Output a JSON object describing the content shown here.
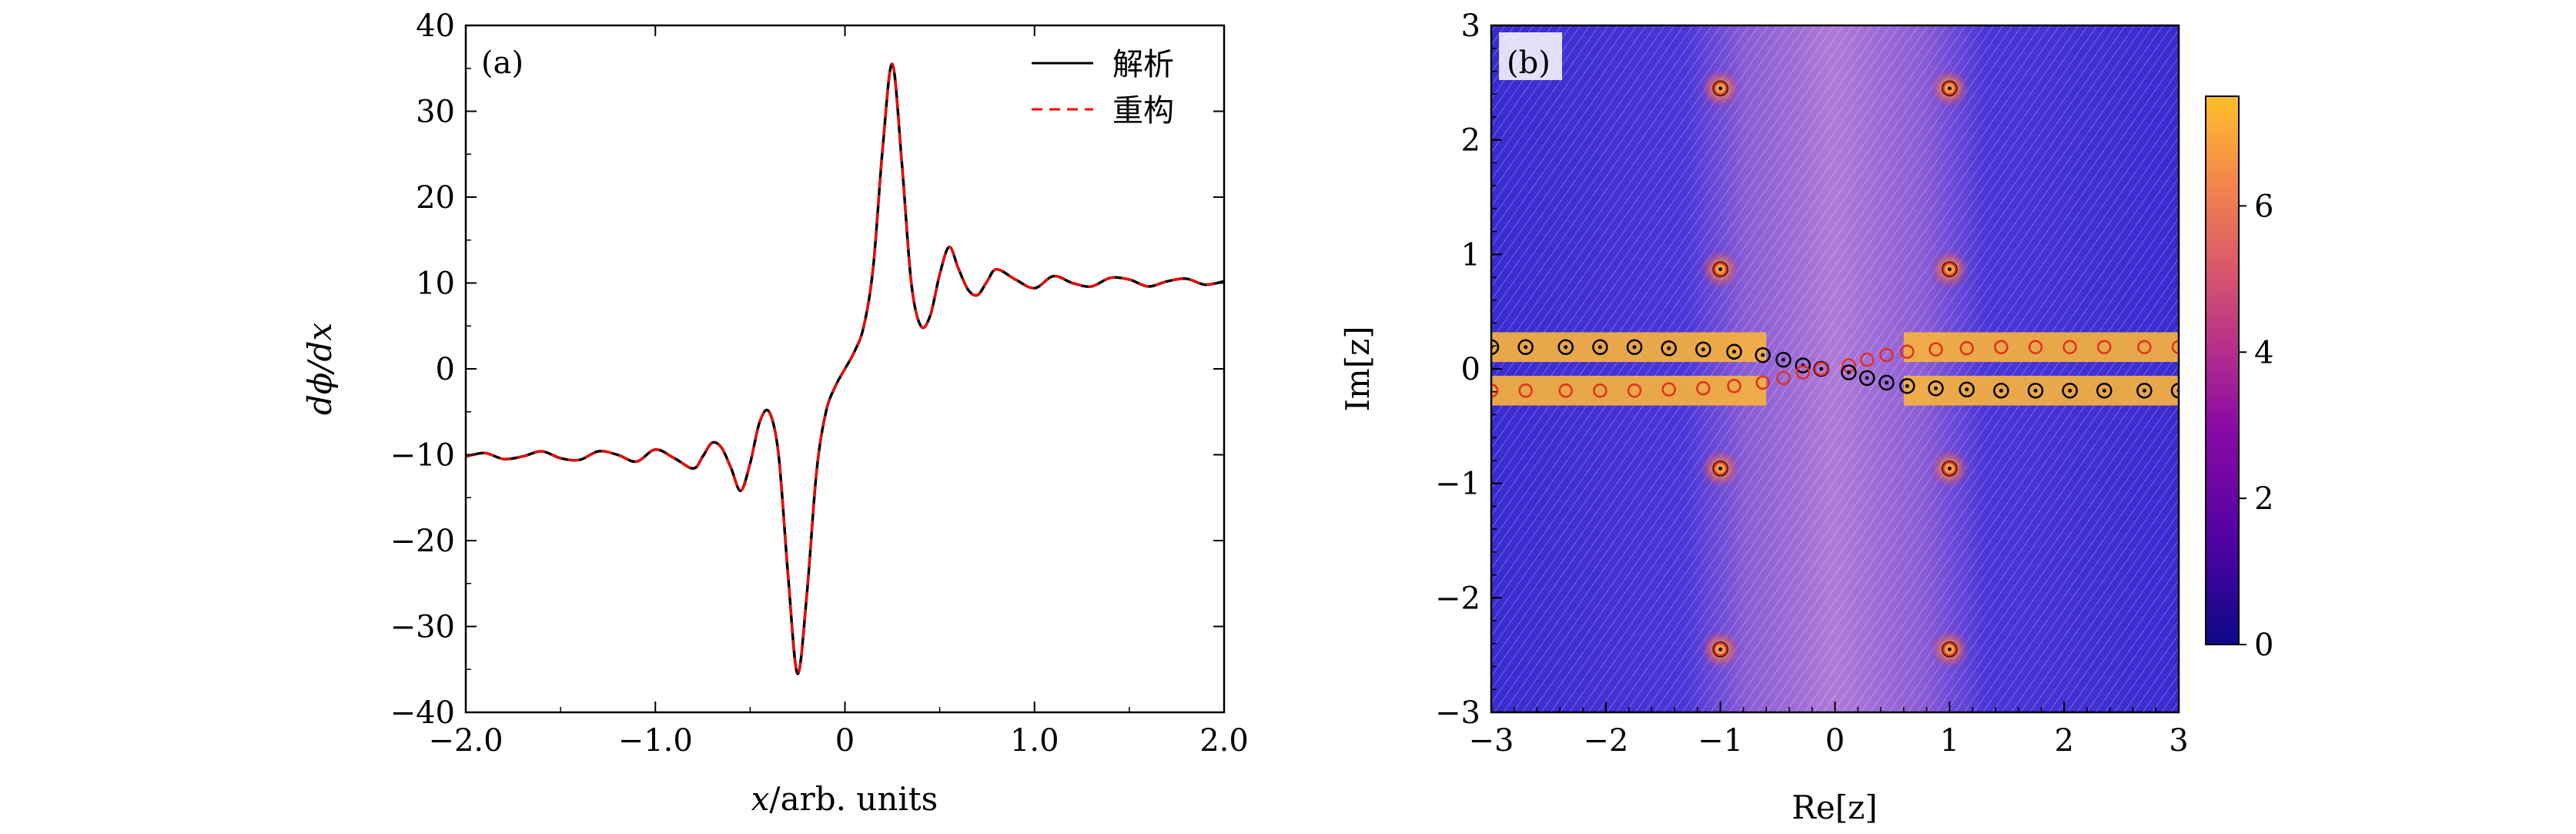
{
  "chart_data": [
    {
      "panel": "(a)",
      "type": "line",
      "xlabel": "x/arb. units",
      "ylabel": "dϕ/dx",
      "xlim": [
        -2.0,
        2.0
      ],
      "ylim": [
        -40,
        40
      ],
      "xticks": [
        -2.0,
        -1.0,
        0,
        1.0,
        2.0
      ],
      "xtick_labels": [
        "−2.0",
        "−1.0",
        "0",
        "1.0",
        "2.0"
      ],
      "yticks": [
        -40,
        -30,
        -20,
        -10,
        0,
        10,
        20,
        30,
        40
      ],
      "ytick_labels": [
        "−40",
        "−30",
        "−20",
        "−10",
        "0",
        "10",
        "20",
        "30",
        "40"
      ],
      "legend_position": "top-right",
      "grid": false,
      "series": [
        {
          "name": "解析",
          "color": "#000000",
          "style": "solid",
          "x": [
            -2.0,
            -1.9,
            -1.8,
            -1.7,
            -1.6,
            -1.5,
            -1.4,
            -1.3,
            -1.2,
            -1.1,
            -1.0,
            -0.9,
            -0.8,
            -0.75,
            -0.7,
            -0.65,
            -0.6,
            -0.55,
            -0.5,
            -0.45,
            -0.4,
            -0.35,
            -0.3,
            -0.25,
            -0.2,
            -0.15,
            -0.1,
            -0.05,
            0.0,
            0.05,
            0.1,
            0.15,
            0.2,
            0.25,
            0.3,
            0.35,
            0.4,
            0.45,
            0.5,
            0.55,
            0.6,
            0.65,
            0.7,
            0.75,
            0.8,
            0.9,
            1.0,
            1.1,
            1.2,
            1.3,
            1.4,
            1.5,
            1.6,
            1.7,
            1.8,
            1.9,
            2.0
          ],
          "y": [
            -10.2,
            -9.8,
            -10.5,
            -10.2,
            -9.6,
            -10.4,
            -10.6,
            -9.6,
            -10.0,
            -10.8,
            -9.4,
            -10.4,
            -11.6,
            -10.2,
            -8.6,
            -9.2,
            -11.6,
            -14.2,
            -11.0,
            -6.2,
            -5.0,
            -10.0,
            -24.0,
            -35.5,
            -26.0,
            -12.0,
            -5.0,
            -2.0,
            0.0,
            2.0,
            5.0,
            12.0,
            26.0,
            35.5,
            24.0,
            10.0,
            5.0,
            6.2,
            11.0,
            14.2,
            11.6,
            9.2,
            8.6,
            10.2,
            11.6,
            10.4,
            9.4,
            10.8,
            10.0,
            9.6,
            10.6,
            10.4,
            9.6,
            10.2,
            10.5,
            9.8,
            10.2
          ]
        },
        {
          "name": "重构",
          "color": "#ff0000",
          "style": "dashed",
          "same_as": "解析"
        }
      ]
    },
    {
      "panel": "(b)",
      "type": "heatmap",
      "xlabel": "Re[z]",
      "ylabel": "Im[z]",
      "xlim": [
        -3,
        3
      ],
      "ylim": [
        -3,
        3
      ],
      "xticks": [
        -3,
        -2,
        -1,
        0,
        1,
        2,
        3
      ],
      "xtick_labels": [
        "−3",
        "−2",
        "−1",
        "0",
        "1",
        "2",
        "3"
      ],
      "yticks": [
        -3,
        -2,
        -1,
        0,
        1,
        2,
        3
      ],
      "ytick_labels": [
        "−3",
        "−2",
        "−1",
        "0",
        "1",
        "2",
        "3"
      ],
      "colorbar": {
        "min": 0,
        "max": 7.5,
        "ticks": [
          0,
          2,
          4,
          6
        ],
        "tick_labels": [
          "0",
          "2",
          "4",
          "6"
        ],
        "colormap": "plasma"
      },
      "markers": {
        "circles_black": [
          {
            "re": -1.0,
            "im": 2.45
          },
          {
            "re": 1.0,
            "im": 2.45
          },
          {
            "re": -1.0,
            "im": 0.87
          },
          {
            "re": 1.0,
            "im": 0.87
          },
          {
            "re": -1.0,
            "im": -0.87
          },
          {
            "re": 1.0,
            "im": -0.87
          },
          {
            "re": -1.0,
            "im": -2.45
          },
          {
            "re": 1.0,
            "im": -2.45
          }
        ],
        "upper_chain_re": [
          -3.0,
          -2.7,
          -2.35,
          -2.05,
          -1.75,
          -1.45,
          -1.15,
          -0.88,
          -0.63,
          -0.45,
          -0.28,
          -0.12,
          0.12,
          0.28,
          0.45,
          0.63,
          0.88,
          1.15,
          1.45,
          1.75,
          2.05,
          2.35,
          2.7,
          3.0
        ],
        "upper_chain_im": [
          0.19,
          0.19,
          0.19,
          0.19,
          0.19,
          0.18,
          0.17,
          0.15,
          0.12,
          0.08,
          0.03,
          0.0,
          0.03,
          0.08,
          0.12,
          0.15,
          0.17,
          0.18,
          0.19,
          0.19,
          0.19,
          0.19,
          0.19,
          0.19
        ],
        "lower_chain_im_sign": -1
      }
    }
  ],
  "panel_a": {
    "label": "(a)",
    "xlabel_var": "x",
    "xlabel_rest": "/arb. units",
    "ylabel": "dϕ/dx",
    "legend": [
      {
        "label": "解析"
      },
      {
        "label": "重构"
      }
    ]
  },
  "panel_b": {
    "label": "(b)",
    "xlabel": "Re[z]",
    "ylabel": "Im[z]"
  }
}
